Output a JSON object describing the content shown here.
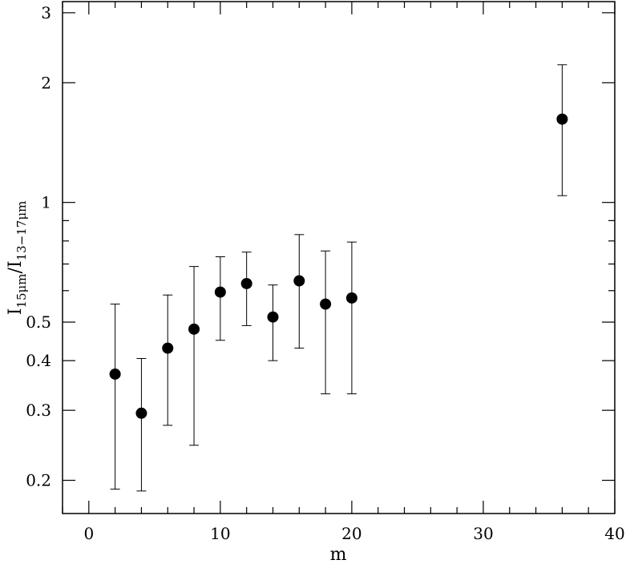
{
  "chart_data": {
    "type": "scatter",
    "xlabel": "m",
    "ylabel": {
      "prefix": "I",
      "sub1": "15μm",
      "slash": "/I",
      "sub2": "13−17μm"
    },
    "xlim": [
      -2,
      40
    ],
    "ylim": [
      0.165,
      3.2
    ],
    "y_scale": "log",
    "x_ticks": [
      0,
      10,
      20,
      30,
      40
    ],
    "y_ticks": [
      {
        "value": 0.2,
        "label": "0.2"
      },
      {
        "value": 0.3,
        "label": "0.3"
      },
      {
        "value": 0.4,
        "label": "0.4"
      },
      {
        "value": 0.5,
        "label": "0.5"
      },
      {
        "value": 1,
        "label": "1"
      },
      {
        "value": 2,
        "label": "2"
      },
      {
        "value": 3,
        "label": "3"
      }
    ],
    "points": [
      {
        "x": 2,
        "y": 0.37,
        "y_low": 0.19,
        "y_high": 0.555
      },
      {
        "x": 4,
        "y": 0.295,
        "y_low": 0.188,
        "y_high": 0.405
      },
      {
        "x": 6,
        "y": 0.43,
        "y_low": 0.275,
        "y_high": 0.585
      },
      {
        "x": 8,
        "y": 0.48,
        "y_low": 0.245,
        "y_high": 0.69
      },
      {
        "x": 10,
        "y": 0.595,
        "y_low": 0.45,
        "y_high": 0.73
      },
      {
        "x": 12,
        "y": 0.625,
        "y_low": 0.49,
        "y_high": 0.75
      },
      {
        "x": 14,
        "y": 0.515,
        "y_low": 0.4,
        "y_high": 0.62
      },
      {
        "x": 16,
        "y": 0.635,
        "y_low": 0.43,
        "y_high": 0.83
      },
      {
        "x": 18,
        "y": 0.555,
        "y_low": 0.33,
        "y_high": 0.755
      },
      {
        "x": 20,
        "y": 0.575,
        "y_low": 0.33,
        "y_high": 0.795
      },
      {
        "x": 36,
        "y": 1.62,
        "y_low": 1.04,
        "y_high": 2.22
      }
    ]
  }
}
